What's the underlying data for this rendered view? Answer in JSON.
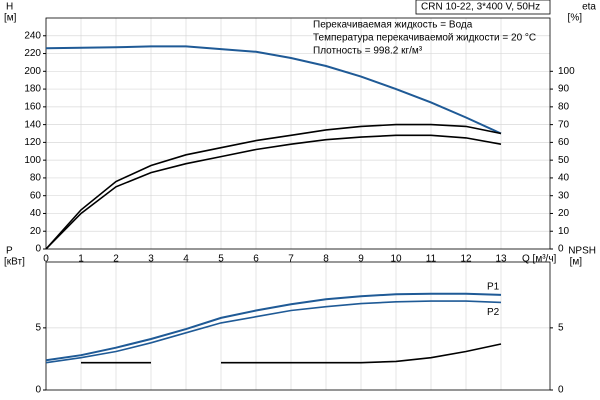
{
  "chart_data": [
    {
      "type": "line",
      "title": "CRN 10-22, 3*400 V, 50Hz",
      "annotations": [
        "Перекачиваемая жидкость = Вода",
        "Температура перекачиваемой жидкости = 20 °C",
        "Плотность = 998.2 кг/м³"
      ],
      "ylabel": "H",
      "yunit": "[м]",
      "y2label": "eta",
      "y2unit": "[%]",
      "xlabel": "Q [м³/ч]",
      "x": [
        0,
        1,
        2,
        3,
        4,
        5,
        6,
        7,
        8,
        9,
        10,
        11,
        12,
        13
      ],
      "series": [
        {
          "color": "#1f5a96",
          "values": [
            226,
            226.5,
            227,
            228,
            228,
            225,
            222,
            215,
            206,
            194,
            180,
            165,
            148,
            130
          ]
        },
        {
          "color": "#000000",
          "axis": "y2",
          "values": [
            0,
            22,
            38,
            47,
            53,
            57,
            61,
            64,
            67,
            69,
            70,
            70,
            69,
            65
          ]
        },
        {
          "color": "#000000",
          "axis": "y2",
          "values": [
            0,
            20,
            35,
            43,
            48,
            52,
            56,
            59,
            61.5,
            63,
            64,
            64,
            62.5,
            59
          ]
        }
      ],
      "xlim": [
        0,
        14.4
      ],
      "xticks": [
        0,
        1,
        2,
        3,
        4,
        5,
        6,
        7,
        8,
        9,
        10,
        11,
        12,
        13
      ],
      "ylim": [
        0,
        260
      ],
      "yticks": [
        0,
        20,
        40,
        60,
        80,
        100,
        120,
        140,
        160,
        180,
        200,
        220,
        240
      ],
      "y2lim": [
        0,
        130
      ],
      "y2ticks": [
        0,
        10,
        20,
        30,
        40,
        50,
        60,
        70,
        80,
        90,
        100
      ],
      "grid": true,
      "show_xtick_labels": true
    },
    {
      "type": "line",
      "ylabel": "P",
      "yunit": "[кВт]",
      "y2label": "NPSH",
      "y2unit": "[м]",
      "x": [
        0,
        1,
        2,
        3,
        4,
        5,
        6,
        7,
        8,
        9,
        10,
        11,
        12,
        13
      ],
      "series": [
        {
          "name": "P1",
          "color": "#1f5a96",
          "values": [
            2.4,
            2.8,
            3.4,
            4.1,
            4.9,
            5.8,
            6.4,
            6.9,
            7.3,
            7.55,
            7.7,
            7.75,
            7.75,
            7.65
          ]
        },
        {
          "name": "P2",
          "color": "#1f5a96",
          "values": [
            2.2,
            2.6,
            3.1,
            3.8,
            4.6,
            5.4,
            5.9,
            6.4,
            6.7,
            6.95,
            7.1,
            7.15,
            7.15,
            7.05
          ]
        },
        {
          "color": "#000000",
          "axis": "y2",
          "values": [
            null,
            2.2,
            2.2,
            2.2,
            null,
            2.2,
            2.2,
            2.2,
            2.2,
            2.2,
            2.3,
            2.6,
            3.1,
            3.7
          ]
        }
      ],
      "xlim": [
        0,
        14.4
      ],
      "xticks": [
        0,
        1,
        2,
        3,
        4,
        5,
        6,
        7,
        8,
        9,
        10,
        11,
        12,
        13
      ],
      "ylim": [
        0,
        10.3
      ],
      "yticks": [
        0,
        5
      ],
      "y2lim": [
        0,
        10.3
      ],
      "y2ticks": [
        0,
        5
      ],
      "grid": true,
      "show_xtick_labels": false
    }
  ]
}
